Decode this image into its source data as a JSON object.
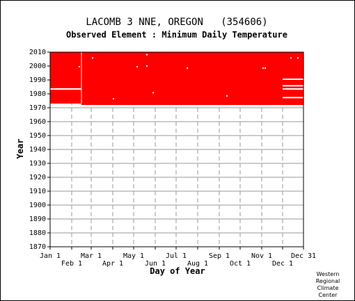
{
  "chart_data": {
    "type": "heatmap",
    "title": "LACOMB 3 NNE, OREGON   (354606)",
    "subtitle": "Observed Element : Minimum Daily Temperature",
    "xlabel": "Day of Year",
    "ylabel": "Year",
    "xlim": [
      1,
      365
    ],
    "ylim": [
      1870,
      2010
    ],
    "yticks": [
      1870,
      1880,
      1890,
      1900,
      1910,
      1920,
      1930,
      1940,
      1950,
      1960,
      1970,
      1980,
      1990,
      2000,
      2010
    ],
    "xticks_top": [
      {
        "label": "Jan 1",
        "day": 1
      },
      {
        "label": "Mar 1",
        "day": 60
      },
      {
        "label": "May 1",
        "day": 121
      },
      {
        "label": "Jul 1",
        "day": 182
      },
      {
        "label": "Sep 1",
        "day": 244
      },
      {
        "label": "Nov 1",
        "day": 305
      },
      {
        "label": "Dec 31",
        "day": 365
      }
    ],
    "xticks_bottom": [
      {
        "label": "Feb 1",
        "day": 32
      },
      {
        "label": "Apr 1",
        "day": 91
      },
      {
        "label": "Jun 1",
        "day": 152
      },
      {
        "label": "Aug 1",
        "day": 213
      },
      {
        "label": "Oct 1",
        "day": 274
      },
      {
        "label": "Dec 1",
        "day": 335
      }
    ],
    "grid": true,
    "data_color": "#ff0000",
    "coverage": [
      {
        "day_start": 1,
        "day_end": 46,
        "year_start": 1973,
        "year_end": 2010
      },
      {
        "day_start": 46,
        "day_end": 365,
        "year_start": 1972,
        "year_end": 2010
      }
    ],
    "missing_lines": [
      {
        "day_start": 1,
        "day_end": 46,
        "year": 1983.5
      },
      {
        "day_start": 335,
        "day_end": 365,
        "year": 1990.5
      },
      {
        "day_start": 335,
        "day_end": 365,
        "year": 1985.8
      },
      {
        "day_start": 335,
        "day_end": 365,
        "year": 1983.5
      },
      {
        "day_start": 335,
        "day_end": 365,
        "year": 1977.3
      }
    ],
    "missing_points": [
      {
        "day": 43,
        "year": 1999.5
      },
      {
        "day": 62,
        "year": 2005.8
      },
      {
        "day": 92,
        "year": 1976.5
      },
      {
        "day": 126,
        "year": 1999.5
      },
      {
        "day": 140,
        "year": 2000
      },
      {
        "day": 140,
        "year": 2008.2
      },
      {
        "day": 149,
        "year": 1980.8
      },
      {
        "day": 198,
        "year": 1998.5
      },
      {
        "day": 255,
        "year": 1978.5
      },
      {
        "day": 307,
        "year": 1998.5
      },
      {
        "day": 310,
        "year": 1998.5
      },
      {
        "day": 347,
        "year": 2005.8
      },
      {
        "day": 357,
        "year": 2005.8
      }
    ],
    "missing_color": "#ffffff"
  },
  "credit": [
    "Western",
    "Regional",
    "Climate",
    "Center"
  ]
}
